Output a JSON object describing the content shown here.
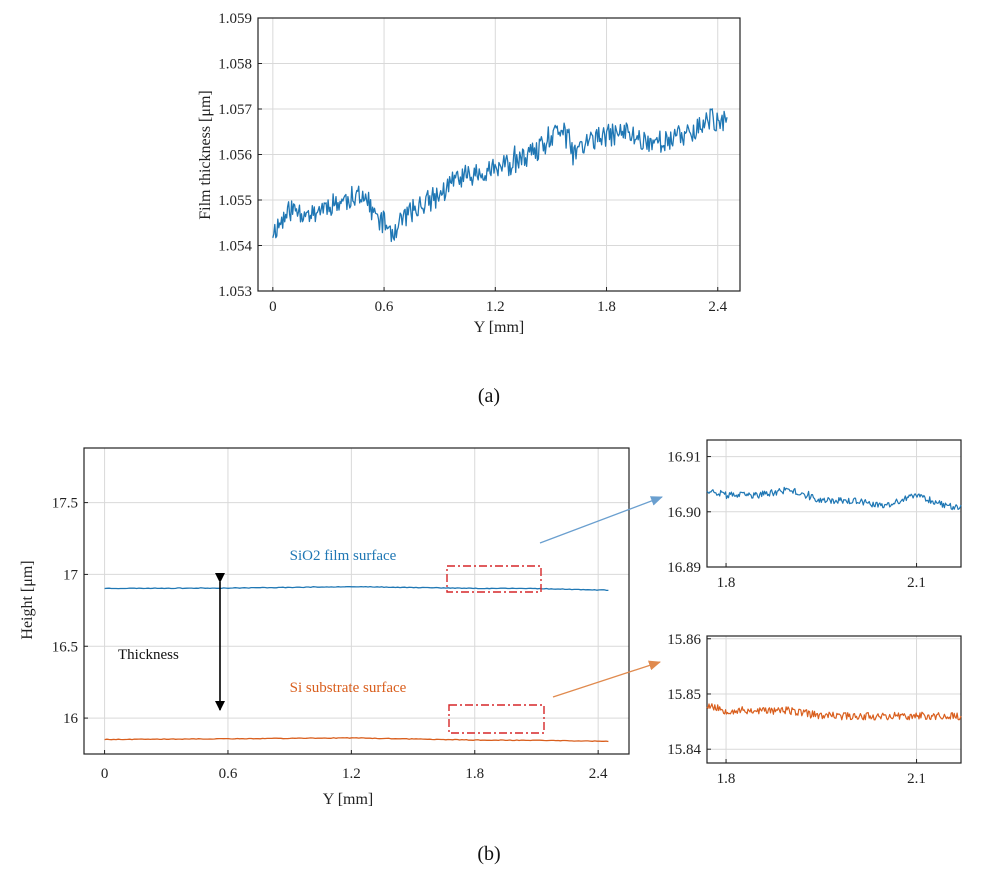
{
  "colors": {
    "blue": "#1f77b4",
    "orange": "#d95f1e",
    "red_box": "#d62728",
    "grid": "#d9d9d9"
  },
  "captions": {
    "a": "(a)",
    "b": "(b)"
  },
  "chart_data": [
    {
      "type": "line",
      "id": "a",
      "xlabel": "Y [mm]",
      "ylabel": "Film thickness [μm]",
      "xlim": [
        -0.08,
        2.52
      ],
      "ylim": [
        1.053,
        1.059
      ],
      "xticks": [
        "0",
        "0.6",
        "1.2",
        "1.8",
        "2.4"
      ],
      "yticks": [
        "1.053",
        "1.054",
        "1.055",
        "1.056",
        "1.057",
        "1.058",
        "1.059"
      ],
      "grid": true,
      "series": [
        {
          "color": "#1f77b4",
          "x": [
            0,
            0.1,
            0.2,
            0.3,
            0.4,
            0.48,
            0.52,
            0.56,
            0.6,
            0.65,
            0.7,
            0.8,
            0.9,
            1.0,
            1.1,
            1.2,
            1.3,
            1.4,
            1.5,
            1.56,
            1.6,
            1.62,
            1.7,
            1.8,
            1.9,
            2.0,
            2.1,
            2.2,
            2.3,
            2.36,
            2.4,
            2.45
          ],
          "y": [
            1.0543,
            1.0548,
            1.0547,
            1.0549,
            1.055,
            1.0552,
            1.0549,
            1.0546,
            1.0545,
            1.0543,
            1.0546,
            1.0549,
            1.0551,
            1.0555,
            1.0556,
            1.0557,
            1.0558,
            1.056,
            1.0563,
            1.0566,
            1.0563,
            1.056,
            1.0563,
            1.0564,
            1.0565,
            1.0563,
            1.0563,
            1.0564,
            1.0566,
            1.0568,
            1.0567,
            1.0567
          ]
        }
      ]
    },
    {
      "type": "line",
      "id": "b",
      "xlabel": "Y [mm]",
      "ylabel": "Height [μm]",
      "xlim": [
        -0.1,
        2.55
      ],
      "ylim": [
        15.75,
        17.88
      ],
      "xticks": [
        "0",
        "0.6",
        "1.2",
        "1.8",
        "2.4"
      ],
      "yticks": [
        "16",
        "16.5",
        "17",
        "17.5"
      ],
      "grid": true,
      "annotations": [
        "SiO2 film surface",
        "Si substrate surface",
        "Thickness"
      ],
      "series": [
        {
          "name": "SiO2 film surface",
          "color": "#1f77b4",
          "x": [
            0,
            0.6,
            1.2,
            1.8,
            2.1,
            2.45
          ],
          "y": [
            16.903,
            16.905,
            16.915,
            16.903,
            16.902,
            16.89
          ]
        },
        {
          "name": "Si substrate surface",
          "color": "#d95f1e",
          "x": [
            0,
            0.6,
            1.2,
            1.8,
            2.1,
            2.45
          ],
          "y": [
            15.851,
            15.856,
            15.862,
            15.847,
            15.845,
            15.838
          ]
        }
      ]
    },
    {
      "type": "line",
      "id": "inset_top",
      "xlim": [
        1.77,
        2.17
      ],
      "ylim": [
        16.89,
        16.913
      ],
      "xticks": [
        "1.8",
        "2.1"
      ],
      "yticks": [
        "16.89",
        "16.90",
        "16.91"
      ],
      "grid": true,
      "series": [
        {
          "color": "#1f77b4",
          "x": [
            1.77,
            1.8,
            1.85,
            1.9,
            1.95,
            2.0,
            2.05,
            2.1,
            2.15,
            2.17
          ],
          "y": [
            16.904,
            16.903,
            16.903,
            16.904,
            16.902,
            16.902,
            16.901,
            16.903,
            16.901,
            16.901
          ]
        }
      ]
    },
    {
      "type": "line",
      "id": "inset_bottom",
      "xlim": [
        1.77,
        2.17
      ],
      "ylim": [
        15.8375,
        15.8605
      ],
      "xticks": [
        "1.8",
        "2.1"
      ],
      "yticks": [
        "15.84",
        "15.85",
        "15.86"
      ],
      "grid": true,
      "series": [
        {
          "color": "#d95f1e",
          "x": [
            1.77,
            1.8,
            1.85,
            1.9,
            1.95,
            2.0,
            2.05,
            2.1,
            2.15,
            2.17
          ],
          "y": [
            15.848,
            15.847,
            15.847,
            15.847,
            15.846,
            15.846,
            15.846,
            15.846,
            15.846,
            15.846
          ]
        }
      ]
    }
  ]
}
